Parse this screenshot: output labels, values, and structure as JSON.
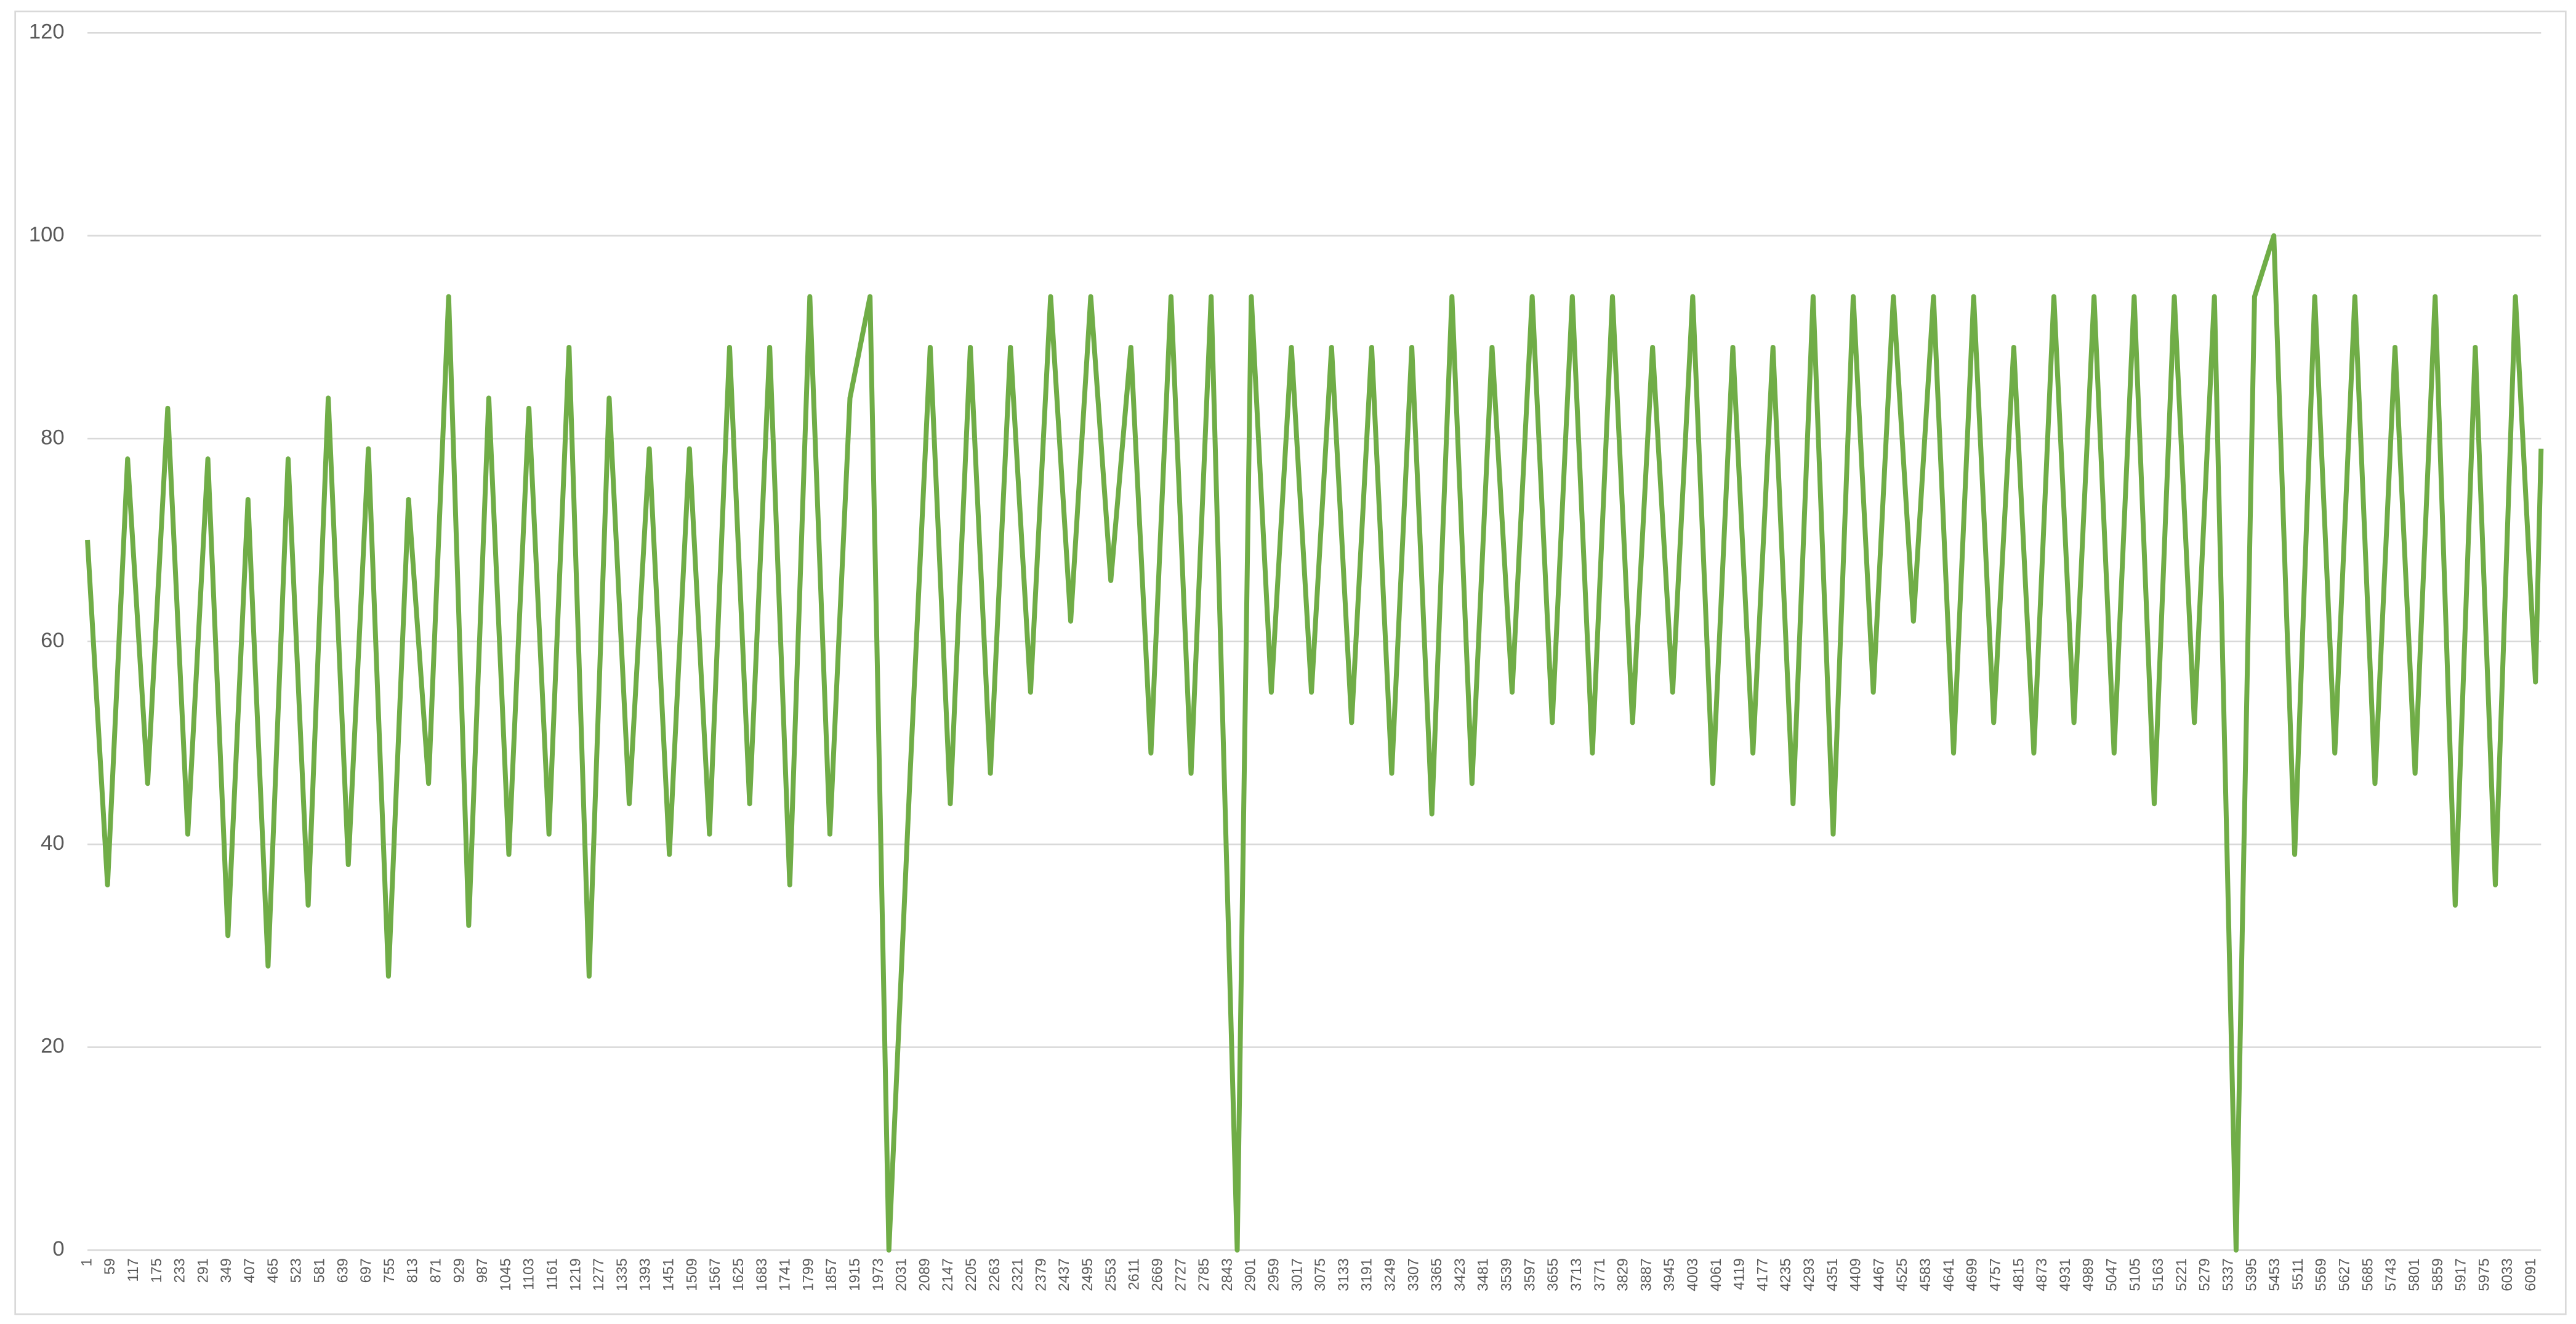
{
  "chart_data": {
    "type": "line",
    "xlim": [
      1,
      6115
    ],
    "xticks": [
      1,
      59,
      117,
      175,
      233,
      291,
      349,
      407,
      465,
      523,
      581,
      639,
      697,
      755,
      813,
      871,
      929,
      987,
      1045,
      1103,
      1161,
      1219,
      1277,
      1335,
      1393,
      1451,
      1509,
      1567,
      1625,
      1683,
      1741,
      1799,
      1857,
      1915,
      1973,
      2031,
      2089,
      2147,
      2205,
      2263,
      2321,
      2379,
      2437,
      2495,
      2553,
      2611,
      2669,
      2727,
      2785,
      2843,
      2901,
      2959,
      3017,
      3075,
      3133,
      3191,
      3249,
      3307,
      3365,
      3423,
      3481,
      3539,
      3597,
      3655,
      3713,
      3771,
      3829,
      3887,
      3945,
      4003,
      4061,
      4119,
      4177,
      4235,
      4293,
      4351,
      4409,
      4467,
      4525,
      4583,
      4641,
      4699,
      4757,
      4815,
      4873,
      4931,
      4989,
      5047,
      5105,
      5163,
      5221,
      5279,
      5337,
      5395,
      5453,
      5511,
      5569,
      5627,
      5685,
      5743,
      5801,
      5859,
      5917,
      5975,
      6033,
      6091
    ],
    "ylim": [
      0,
      120
    ],
    "yticks": [
      0,
      20,
      40,
      60,
      80,
      100,
      120
    ],
    "grid": true,
    "series": [
      {
        "color": "#70ad47",
        "x": [
          1,
          51,
          101,
          151,
          201,
          251,
          301,
          351,
          401,
          451,
          501,
          551,
          601,
          651,
          701,
          751,
          801,
          851,
          901,
          951,
          1001,
          1051,
          1101,
          1151,
          1201,
          1251,
          1301,
          1351,
          1401,
          1451,
          1501,
          1551,
          1601,
          1651,
          1701,
          1751,
          1801,
          1851,
          1901,
          1951,
          1998,
          2051,
          2101,
          2151,
          2201,
          2251,
          2301,
          2351,
          2401,
          2451,
          2501,
          2551,
          2601,
          2651,
          2701,
          2751,
          2801,
          2866,
          2901,
          2951,
          3001,
          3051,
          3101,
          3151,
          3201,
          3251,
          3301,
          3351,
          3401,
          3451,
          3501,
          3551,
          3601,
          3651,
          3701,
          3751,
          3801,
          3851,
          3901,
          3951,
          4001,
          4051,
          4101,
          4151,
          4201,
          4251,
          4301,
          4351,
          4401,
          4451,
          4501,
          4551,
          4601,
          4651,
          4701,
          4751,
          4801,
          4851,
          4901,
          4951,
          5001,
          5051,
          5101,
          5151,
          5201,
          5251,
          5301,
          5355,
          5401,
          5449,
          5501,
          5551,
          5601,
          5651,
          5701,
          5751,
          5801,
          5851,
          5901,
          5951,
          6001,
          6051,
          6101,
          6115
        ],
        "values": [
          70,
          36,
          78,
          46,
          83,
          41,
          78,
          31,
          74,
          28,
          78,
          34,
          84,
          38,
          79,
          27,
          74,
          46,
          94,
          32,
          84,
          39,
          83,
          41,
          89,
          27,
          84,
          44,
          79,
          39,
          79,
          41,
          89,
          44,
          89,
          36,
          94,
          41,
          84,
          94,
          0,
          47,
          89,
          44,
          89,
          47,
          89,
          55,
          94,
          62,
          94,
          66,
          89,
          49,
          94,
          47,
          94,
          0,
          94,
          55,
          89,
          55,
          89,
          52,
          89,
          47,
          89,
          43,
          94,
          46,
          89,
          55,
          94,
          52,
          94,
          49,
          94,
          52,
          89,
          55,
          94,
          46,
          89,
          49,
          89,
          44,
          94,
          41,
          94,
          55,
          94,
          62,
          94,
          49,
          94,
          52,
          89,
          49,
          94,
          52,
          94,
          49,
          94,
          44,
          94,
          52,
          94,
          0,
          94,
          100,
          39,
          94,
          49,
          94,
          46,
          89,
          47,
          94,
          34,
          89,
          36,
          94,
          56,
          79
        ]
      }
    ]
  }
}
